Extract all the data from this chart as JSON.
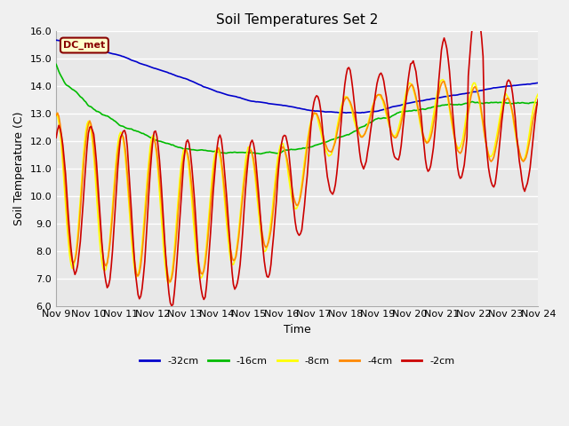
{
  "title": "Soil Temperatures Set 2",
  "xlabel": "Time",
  "ylabel": "Soil Temperature (C)",
  "ylim": [
    6.0,
    16.0
  ],
  "yticks": [
    6.0,
    7.0,
    8.0,
    9.0,
    10.0,
    11.0,
    12.0,
    13.0,
    14.0,
    15.0,
    16.0
  ],
  "fig_bg_color": "#f0f0f0",
  "plot_bg_color": "#e8e8e8",
  "grid_color": "white",
  "annotation_text": "DC_met",
  "annotation_bg": "#ffffcc",
  "annotation_border": "#880000",
  "series_colors": {
    "-32cm": "#0000cc",
    "-16cm": "#00bb00",
    "-8cm": "#ffff00",
    "-4cm": "#ff8800",
    "-2cm": "#cc0000"
  },
  "linewidth": 1.2,
  "x_tick_days": [
    9,
    10,
    11,
    12,
    13,
    14,
    15,
    16,
    17,
    18,
    19,
    20,
    21,
    22,
    23,
    24
  ]
}
